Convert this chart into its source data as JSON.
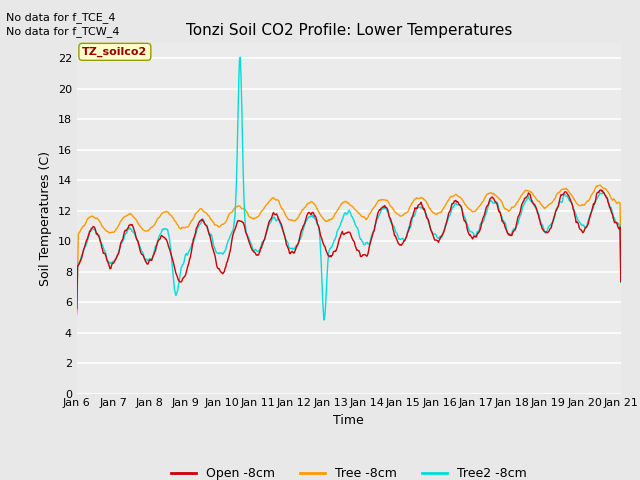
{
  "title": "Tonzi Soil CO2 Profile: Lower Temperatures",
  "xlabel": "Time",
  "ylabel": "Soil Temperatures (C)",
  "annotation1": "No data for f_TCE_4",
  "annotation2": "No data for f_TCW_4",
  "legend_label": "TZ_soilco2",
  "ylim": [
    0,
    23
  ],
  "yticks": [
    0,
    2,
    4,
    6,
    8,
    10,
    12,
    14,
    16,
    18,
    20,
    22
  ],
  "xtick_labels": [
    "Jan 6",
    "Jan 7",
    "Jan 8",
    "Jan 9",
    "Jan 10",
    "Jan 11",
    "Jan 12",
    "Jan 13",
    "Jan 14",
    "Jan 15",
    "Jan 16",
    "Jan 17",
    "Jan 18",
    "Jan 19",
    "Jan 20",
    "Jan 21"
  ],
  "line_colors": {
    "open": "#cc0000",
    "tree": "#ff9900",
    "tree2": "#00dddd"
  },
  "legend_entries": [
    "Open -8cm",
    "Tree -8cm",
    "Tree2 -8cm"
  ],
  "bg_color": "#e8e8e8",
  "plot_bg": "#ebebeb",
  "grid_color": "#ffffff",
  "n_days": 15,
  "pts_per_day": 48
}
